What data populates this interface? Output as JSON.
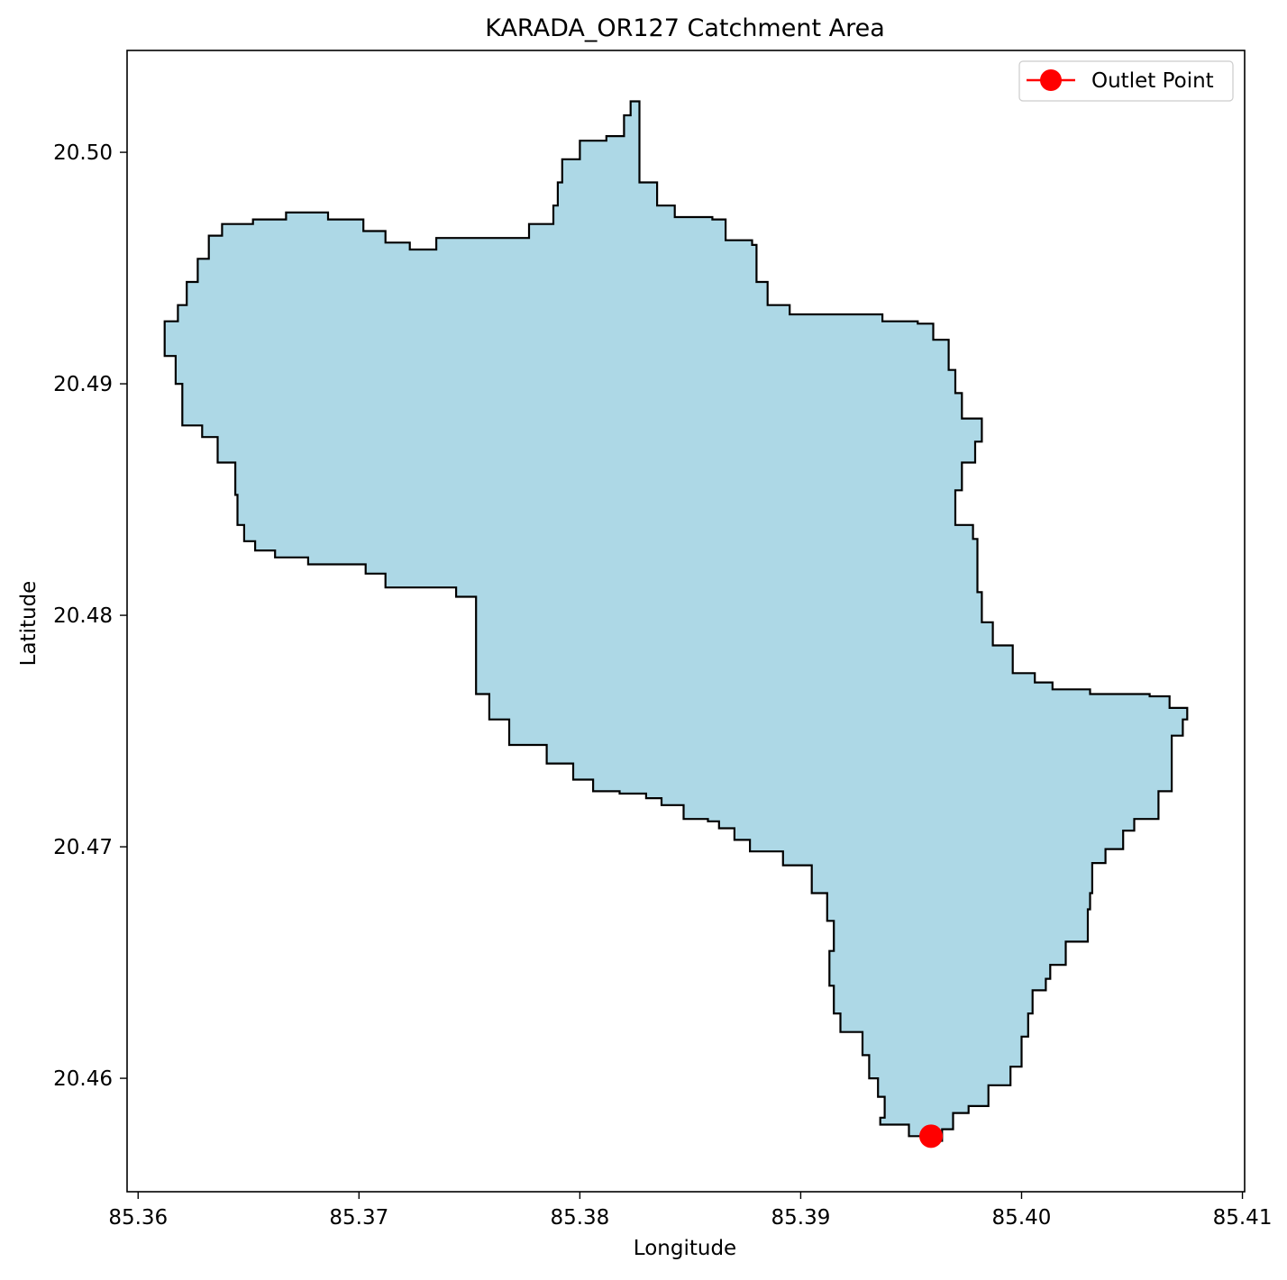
{
  "title": "KARADA_OR127 Catchment Area",
  "xlabel": "Longitude",
  "ylabel": "Latitude",
  "legend": {
    "label": "Outlet Point",
    "placement": "top-right"
  },
  "colors": {
    "catchment_fill": "#add8e6",
    "catchment_edge": "#000000",
    "outlet": "#ff0000",
    "axes": "#000000"
  },
  "chart_data": {
    "type": "map",
    "title": "KARADA_OR127 Catchment Area",
    "xlabel": "Longitude",
    "ylabel": "Latitude",
    "xlim": [
      85.3595,
      85.4101
    ],
    "ylim": [
      20.4551,
      20.5044
    ],
    "xticks": [
      85.36,
      85.37,
      85.38,
      85.39,
      85.4,
      85.41
    ],
    "xtick_labels": [
      "85.36",
      "85.37",
      "85.38",
      "85.39",
      "85.40",
      "85.41"
    ],
    "yticks": [
      20.46,
      20.47,
      20.48,
      20.49,
      20.5
    ],
    "ytick_labels": [
      "20.46",
      "20.47",
      "20.48",
      "20.49",
      "20.50"
    ],
    "grid": false,
    "catchment": {
      "boundary": [
        [
          85.3612,
          20.4927
        ],
        [
          85.3618,
          20.4934
        ],
        [
          85.3622,
          20.4944
        ],
        [
          85.3627,
          20.4954
        ],
        [
          85.3632,
          20.4964
        ],
        [
          85.3638,
          20.4969
        ],
        [
          85.3652,
          20.4971
        ],
        [
          85.3667,
          20.4974
        ],
        [
          85.3686,
          20.4971
        ],
        [
          85.3702,
          20.4966
        ],
        [
          85.3712,
          20.4961
        ],
        [
          85.3723,
          20.4958
        ],
        [
          85.3735,
          20.4963
        ],
        [
          85.3765,
          20.4963
        ],
        [
          85.3777,
          20.4969
        ],
        [
          85.3788,
          20.4977
        ],
        [
          85.379,
          20.4987
        ],
        [
          85.3792,
          20.4997
        ],
        [
          85.38,
          20.5005
        ],
        [
          85.3812,
          20.5007
        ],
        [
          85.382,
          20.5016
        ],
        [
          85.3823,
          20.5022
        ],
        [
          85.3827,
          20.5019
        ],
        [
          85.3827,
          20.4987
        ],
        [
          85.3835,
          20.4977
        ],
        [
          85.3843,
          20.4972
        ],
        [
          85.386,
          20.4971
        ],
        [
          85.3866,
          20.4962
        ],
        [
          85.3878,
          20.496
        ],
        [
          85.388,
          20.4944
        ],
        [
          85.3885,
          20.4934
        ],
        [
          85.3895,
          20.493
        ],
        [
          85.3924,
          20.493
        ],
        [
          85.3937,
          20.4927
        ],
        [
          85.3953,
          20.4926
        ],
        [
          85.396,
          20.4919
        ],
        [
          85.3967,
          20.4906
        ],
        [
          85.397,
          20.4896
        ],
        [
          85.3973,
          20.4885
        ],
        [
          85.3982,
          20.4875
        ],
        [
          85.3979,
          20.4866
        ],
        [
          85.3973,
          20.4854
        ],
        [
          85.397,
          20.4839
        ],
        [
          85.3978,
          20.4833
        ],
        [
          85.398,
          20.481
        ],
        [
          85.3982,
          20.4797
        ],
        [
          85.3987,
          20.4787
        ],
        [
          85.3996,
          20.4775
        ],
        [
          85.4006,
          20.4771
        ],
        [
          85.4014,
          20.4768
        ],
        [
          85.4031,
          20.4766
        ],
        [
          85.4058,
          20.4765
        ],
        [
          85.4067,
          20.476
        ],
        [
          85.4075,
          20.4755
        ],
        [
          85.4073,
          20.4748
        ],
        [
          85.4068,
          20.4738
        ],
        [
          85.4068,
          20.4724
        ],
        [
          85.4062,
          20.4712
        ],
        [
          85.4051,
          20.4707
        ],
        [
          85.4046,
          20.4699
        ],
        [
          85.4038,
          20.4693
        ],
        [
          85.4032,
          20.468
        ],
        [
          85.4031,
          20.4673
        ],
        [
          85.403,
          20.4659
        ],
        [
          85.402,
          20.4649
        ],
        [
          85.4013,
          20.4643
        ],
        [
          85.4011,
          20.4638
        ],
        [
          85.4005,
          20.4628
        ],
        [
          85.4003,
          20.4618
        ],
        [
          85.4,
          20.4605
        ],
        [
          85.3995,
          20.4597
        ],
        [
          85.3985,
          20.4588
        ],
        [
          85.3976,
          20.4585
        ],
        [
          85.3969,
          20.4578
        ],
        [
          85.3964,
          20.4573
        ],
        [
          85.3958,
          20.4575
        ],
        [
          85.3949,
          20.458
        ],
        [
          85.3936,
          20.4583
        ],
        [
          85.3938,
          20.4592
        ],
        [
          85.3935,
          20.46
        ],
        [
          85.3931,
          20.461
        ],
        [
          85.3928,
          20.462
        ],
        [
          85.3918,
          20.4628
        ],
        [
          85.3915,
          20.464
        ],
        [
          85.3913,
          20.4655
        ],
        [
          85.3915,
          20.4668
        ],
        [
          85.3912,
          20.468
        ],
        [
          85.3905,
          20.4692
        ],
        [
          85.3892,
          20.4698
        ],
        [
          85.3877,
          20.4703
        ],
        [
          85.387,
          20.4708
        ],
        [
          85.3863,
          20.4711
        ],
        [
          85.3858,
          20.4712
        ],
        [
          85.3847,
          20.4718
        ],
        [
          85.3837,
          20.4721
        ],
        [
          85.383,
          20.4723
        ],
        [
          85.3818,
          20.4724
        ],
        [
          85.3806,
          20.4729
        ],
        [
          85.3797,
          20.4736
        ],
        [
          85.3785,
          20.4744
        ],
        [
          85.3768,
          20.4755
        ],
        [
          85.3759,
          20.4766
        ],
        [
          85.3753,
          20.4776
        ],
        [
          85.3753,
          20.4795
        ],
        [
          85.3753,
          20.4808
        ],
        [
          85.3744,
          20.4812
        ],
        [
          85.3722,
          20.4812
        ],
        [
          85.3712,
          20.4818
        ],
        [
          85.3703,
          20.4822
        ],
        [
          85.3686,
          20.4822
        ],
        [
          85.3677,
          20.4825
        ],
        [
          85.3662,
          20.4828
        ],
        [
          85.3653,
          20.4832
        ],
        [
          85.3648,
          20.4839
        ],
        [
          85.3645,
          20.4852
        ],
        [
          85.3644,
          20.4866
        ],
        [
          85.3636,
          20.4877
        ],
        [
          85.3629,
          20.4882
        ],
        [
          85.362,
          20.49
        ],
        [
          85.3617,
          20.4912
        ],
        [
          85.3612,
          20.4919
        ]
      ]
    },
    "outlet": {
      "lon": 85.3959,
      "lat": 20.4575,
      "label": "Outlet Point"
    }
  }
}
